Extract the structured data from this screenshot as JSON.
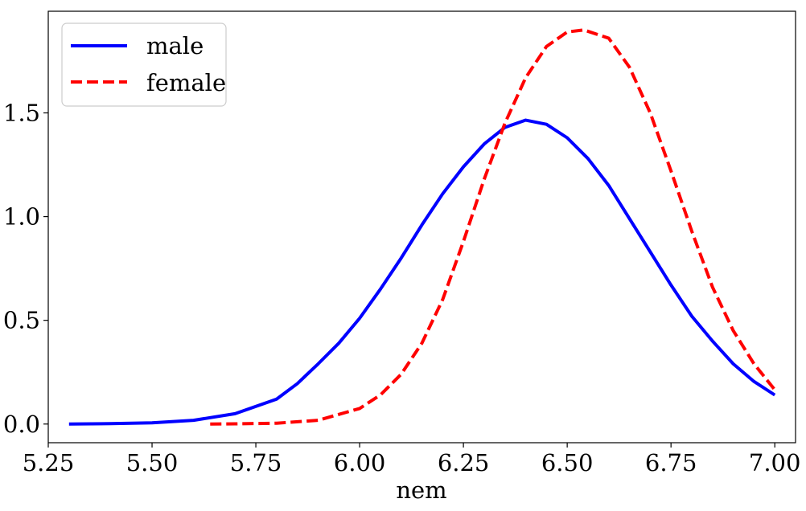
{
  "chart_data": {
    "type": "line",
    "title": "",
    "xlabel": "nem",
    "ylabel": "",
    "xlim": [
      5.25,
      7.05
    ],
    "ylim": [
      -0.09,
      1.99
    ],
    "x_ticks": [
      5.25,
      5.5,
      5.75,
      6.0,
      6.25,
      6.5,
      6.75,
      7.0
    ],
    "x_tick_labels": [
      "5.25",
      "5.50",
      "5.75",
      "6.00",
      "6.25",
      "6.50",
      "6.75",
      "7.00"
    ],
    "y_ticks": [
      0.0,
      0.5,
      1.0,
      1.5
    ],
    "y_tick_labels": [
      "0.0",
      "0.5",
      "1.0",
      "1.5"
    ],
    "grid": false,
    "legend_position": "top-left",
    "series": [
      {
        "name": "male",
        "color": "#0000ff",
        "style": "solid",
        "x": [
          5.3,
          5.4,
          5.5,
          5.6,
          5.7,
          5.8,
          5.85,
          5.9,
          5.95,
          6.0,
          6.05,
          6.1,
          6.15,
          6.2,
          6.25,
          6.3,
          6.35,
          6.4,
          6.45,
          6.5,
          6.55,
          6.6,
          6.65,
          6.7,
          6.75,
          6.8,
          6.85,
          6.9,
          6.95,
          7.0
        ],
        "y": [
          0.0,
          0.002,
          0.006,
          0.018,
          0.05,
          0.12,
          0.195,
          0.29,
          0.39,
          0.51,
          0.65,
          0.8,
          0.96,
          1.11,
          1.24,
          1.35,
          1.43,
          1.465,
          1.445,
          1.38,
          1.28,
          1.15,
          0.99,
          0.83,
          0.67,
          0.52,
          0.4,
          0.29,
          0.205,
          0.14
        ]
      },
      {
        "name": "female",
        "color": "#ff0000",
        "style": "dashed",
        "x": [
          5.64,
          5.7,
          5.8,
          5.9,
          6.0,
          6.05,
          6.1,
          6.15,
          6.2,
          6.25,
          6.3,
          6.35,
          6.4,
          6.45,
          6.5,
          6.54,
          6.6,
          6.65,
          6.7,
          6.75,
          6.8,
          6.85,
          6.9,
          6.95,
          7.0
        ],
        "y": [
          0.0,
          0.001,
          0.004,
          0.018,
          0.075,
          0.14,
          0.24,
          0.39,
          0.6,
          0.88,
          1.18,
          1.45,
          1.67,
          1.82,
          1.89,
          1.9,
          1.86,
          1.72,
          1.5,
          1.22,
          0.93,
          0.66,
          0.45,
          0.29,
          0.165
        ]
      }
    ]
  }
}
